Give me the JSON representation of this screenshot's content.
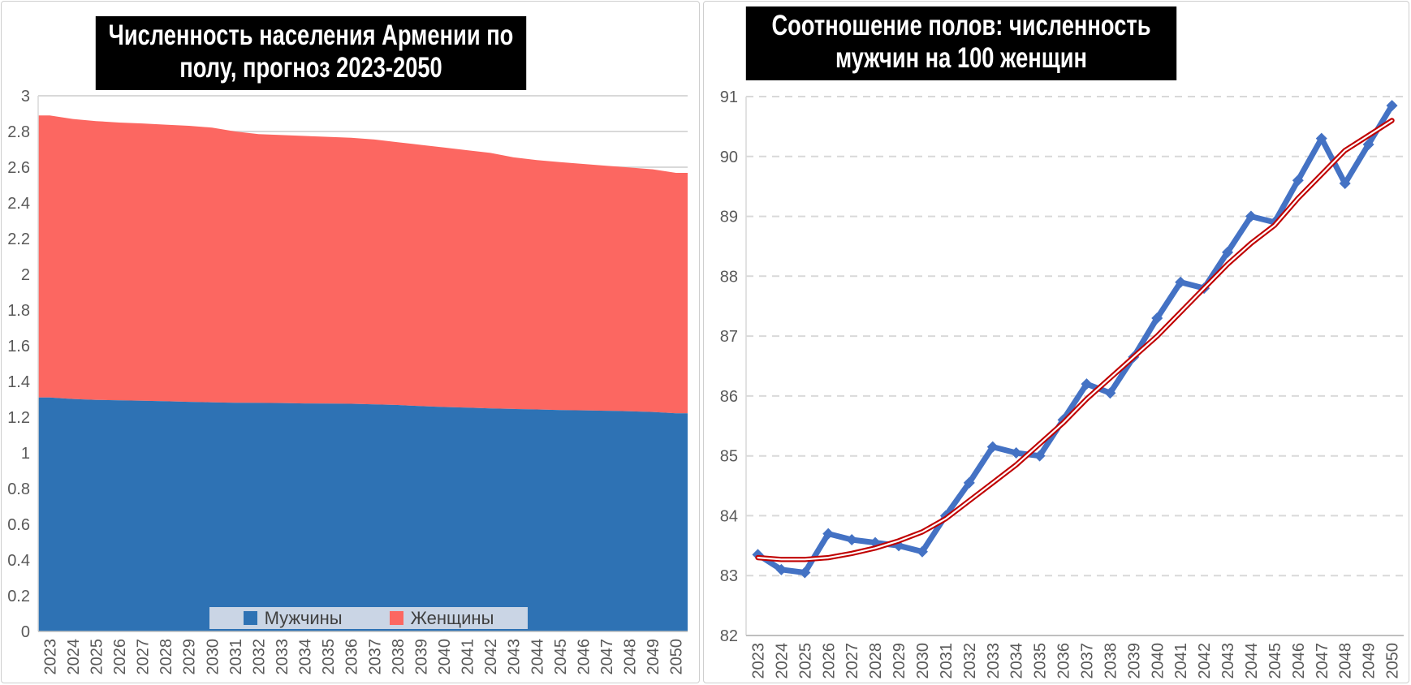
{
  "page": {
    "background": "#ffffff",
    "panel_border": "#cfcfcf"
  },
  "colors": {
    "grid": "#D9D9D9",
    "axis": "#BFBFBF",
    "tick_text": "#595959",
    "title_bg": "#000000",
    "title_text": "#ffffff",
    "legend_bg": "#CAD5E5",
    "legend_text": "#404040",
    "men_fill": "#2E72B4",
    "women_fill": "#FC6761",
    "ratio_line": "#4472C4",
    "trend_line": "#C00000"
  },
  "chart_data": [
    {
      "id": "population-by-sex",
      "type": "area",
      "stacked": true,
      "title": "Численность населения Армении по полу, прогноз 2023-2050",
      "categories": [
        "2023",
        "2024",
        "2025",
        "2026",
        "2027",
        "2028",
        "2029",
        "2030",
        "2031",
        "2032",
        "2033",
        "2034",
        "2035",
        "2036",
        "2037",
        "2038",
        "2039",
        "2040",
        "2041",
        "2042",
        "2043",
        "2044",
        "2045",
        "2046",
        "2047",
        "2048",
        "2049",
        "2050"
      ],
      "series": [
        {
          "name": "Мужчины",
          "color": "#2E72B4",
          "values": [
            1.31,
            1.302,
            1.297,
            1.294,
            1.292,
            1.289,
            1.286,
            1.283,
            1.281,
            1.28,
            1.279,
            1.277,
            1.276,
            1.275,
            1.272,
            1.268,
            1.262,
            1.257,
            1.253,
            1.249,
            1.246,
            1.243,
            1.24,
            1.238,
            1.236,
            1.233,
            1.229,
            1.222
          ]
        },
        {
          "name": "Женщины",
          "color": "#FC6761",
          "values": [
            1.58,
            1.568,
            1.561,
            1.556,
            1.553,
            1.549,
            1.546,
            1.539,
            1.519,
            1.505,
            1.501,
            1.498,
            1.494,
            1.49,
            1.483,
            1.472,
            1.463,
            1.453,
            1.442,
            1.431,
            1.409,
            1.397,
            1.388,
            1.38,
            1.372,
            1.365,
            1.359,
            1.346
          ]
        }
      ],
      "ylim": [
        0,
        3
      ],
      "ytick_step": 0.2,
      "yticks": [
        "3",
        "2.8",
        "2.6",
        "2.4",
        "2.2",
        "2",
        "1.8",
        "1.6",
        "1.4",
        "1.2",
        "1",
        "0.8",
        "0.6",
        "0.4",
        "0.2",
        "0"
      ],
      "grid": "solid",
      "legend_position": "bottom-inside"
    },
    {
      "id": "sex-ratio",
      "type": "line",
      "title": "Соотношение полов: численность мужчин на 100 женщин",
      "categories": [
        "2023",
        "2024",
        "2025",
        "2026",
        "2027",
        "2028",
        "2029",
        "2030",
        "2031",
        "2032",
        "2033",
        "2034",
        "2035",
        "2036",
        "2037",
        "2038",
        "2039",
        "2040",
        "2041",
        "2042",
        "2043",
        "2044",
        "2045",
        "2046",
        "2047",
        "2048",
        "2049",
        "2050"
      ],
      "series": [
        {
          "name": "men-per-100-women",
          "color": "#4472C4",
          "marker": "diamond",
          "values": [
            83.35,
            83.1,
            83.05,
            83.7,
            83.6,
            83.55,
            83.5,
            83.4,
            84.0,
            84.55,
            85.15,
            85.05,
            85.0,
            85.6,
            86.2,
            86.05,
            86.65,
            87.3,
            87.9,
            87.8,
            88.4,
            89.0,
            88.9,
            89.6,
            90.3,
            89.55,
            90.2,
            90.85
          ]
        },
        {
          "name": "trend-line",
          "color": "#C00000",
          "style": "double-line",
          "values": [
            83.3,
            83.27,
            83.27,
            83.3,
            83.37,
            83.46,
            83.58,
            83.73,
            83.95,
            84.25,
            84.55,
            84.85,
            85.2,
            85.55,
            85.95,
            86.3,
            86.65,
            87.0,
            87.4,
            87.8,
            88.2,
            88.55,
            88.85,
            89.3,
            89.7,
            90.1,
            90.35,
            90.6
          ]
        }
      ],
      "ylim": [
        82,
        91
      ],
      "ytick_step": 1,
      "yticks": [
        "91",
        "90",
        "89",
        "88",
        "87",
        "86",
        "85",
        "84",
        "83",
        "82"
      ],
      "grid": "dashed",
      "legend_position": "none"
    }
  ]
}
